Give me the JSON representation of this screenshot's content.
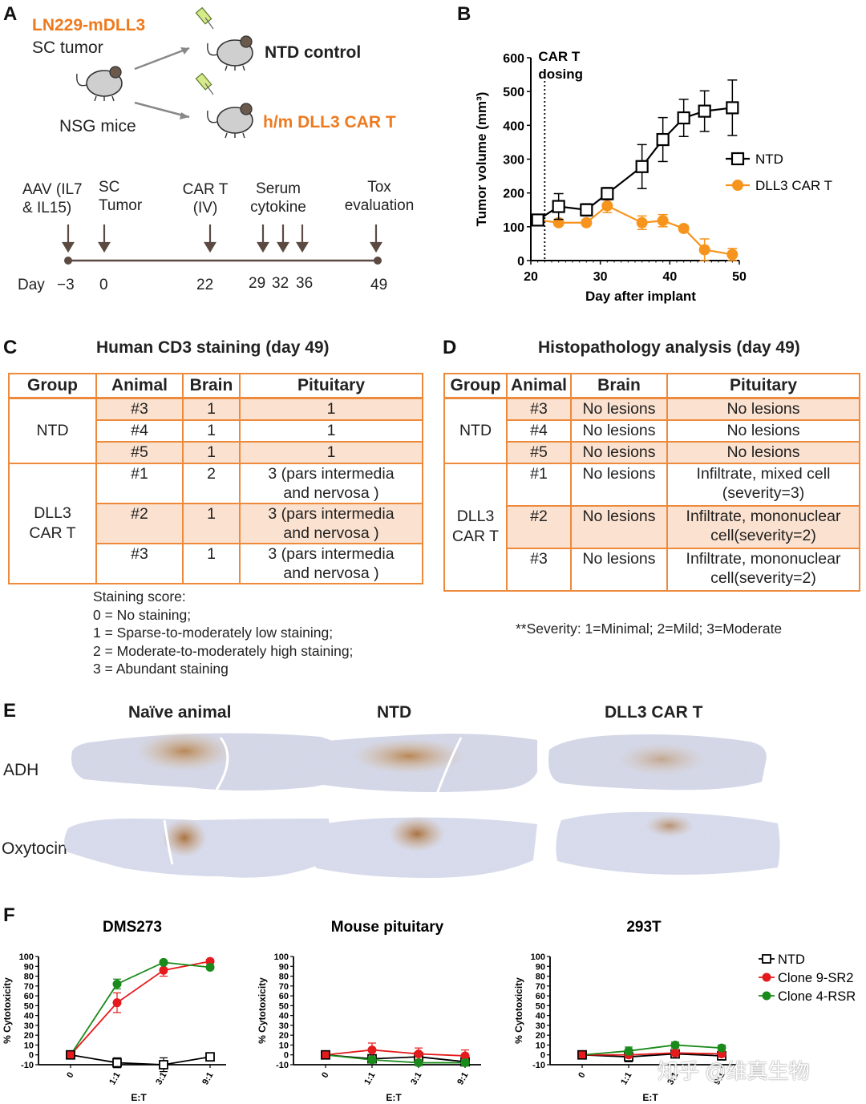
{
  "panelA": {
    "label": "A",
    "tumor_line1": "LN229-mDLL3",
    "tumor_line2": "SC tumor",
    "mice": "NSG mice",
    "group1": "NTD control",
    "group2": "h/m DLL3 CAR T",
    "events": [
      {
        "line1": "AAV (IL7",
        "line2": "& IL15)"
      },
      {
        "line1": "SC",
        "line2": "Tumor"
      },
      {
        "line1": "CAR T",
        "line2": "(IV)"
      },
      {
        "line1": "Serum",
        "line2": "cytokine"
      },
      {
        "line1": "Tox",
        "line2": "evaluation"
      }
    ],
    "day_label": "Day",
    "days": [
      "−3",
      "0",
      "22",
      "29",
      "32",
      "36",
      "49"
    ]
  },
  "panelB": {
    "label": "B",
    "chart_data": {
      "type": "line",
      "xlabel": "Day after implant",
      "ylabel": "Tumor volume (mm³)",
      "xlim": [
        20,
        50
      ],
      "ylim": [
        0,
        600
      ],
      "xticks": [
        "20",
        "30",
        "40",
        "50"
      ],
      "yticks": [
        "0",
        "100",
        "200",
        "300",
        "400",
        "500",
        "600"
      ],
      "annotation_line1": "CAR T",
      "annotation_line2": "dosing",
      "annotation_x": 22,
      "series": [
        {
          "name": "NTD",
          "color": "#000000",
          "marker": "square-open",
          "x": [
            21,
            24,
            28,
            31,
            36,
            39,
            42,
            45,
            49
          ],
          "y": [
            120,
            160,
            150,
            198,
            278,
            358,
            422,
            442,
            452
          ],
          "err": [
            12,
            38,
            18,
            18,
            65,
            65,
            55,
            60,
            82
          ]
        },
        {
          "name": "DLL3 CAR T",
          "color": "#f7941d",
          "marker": "circle-filled",
          "x": [
            21,
            24,
            28,
            31,
            36,
            39,
            42,
            45,
            49
          ],
          "y": [
            120,
            112,
            112,
            162,
            112,
            118,
            95,
            32,
            18
          ],
          "err": [
            12,
            8,
            8,
            20,
            20,
            18,
            8,
            32,
            18
          ]
        }
      ]
    }
  },
  "panelC": {
    "label": "C",
    "title": "Human CD3 staining (day 49)",
    "headers": [
      "Group",
      "Animal",
      "Brain",
      "Pituitary"
    ],
    "groups": [
      {
        "name_line1": "NTD",
        "name_line2": "",
        "rows": [
          {
            "animal": "#3",
            "brain": "1",
            "pit1": "1",
            "pit2": ""
          },
          {
            "animal": "#4",
            "brain": "1",
            "pit1": "1",
            "pit2": ""
          },
          {
            "animal": "#5",
            "brain": "1",
            "pit1": "1",
            "pit2": ""
          }
        ]
      },
      {
        "name_line1": "DLL3",
        "name_line2": "CAR T",
        "rows": [
          {
            "animal": "#1",
            "brain": "2",
            "pit1": "3 (pars intermedia",
            "pit2": "and nervosa )"
          },
          {
            "animal": "#2",
            "brain": "1",
            "pit1": "3 (pars intermedia",
            "pit2": "and nervosa )"
          },
          {
            "animal": "#3",
            "brain": "1",
            "pit1": "3 (pars intermedia",
            "pit2": "and nervosa )"
          }
        ]
      }
    ],
    "legend": [
      "Staining score:",
      "0 = No staining;",
      "1 = Sparse-to-moderately low staining;",
      "2 = Moderate-to-moderately high staining;",
      "3 = Abundant staining"
    ]
  },
  "panelD": {
    "label": "D",
    "title": "Histopathology analysis (day 49)",
    "headers": [
      "Group",
      "Animal",
      "Brain",
      "Pituitary"
    ],
    "groups": [
      {
        "name_line1": "NTD",
        "name_line2": "",
        "rows": [
          {
            "animal": "#3",
            "brain": "No lesions",
            "pit1": "No lesions",
            "pit2": ""
          },
          {
            "animal": "#4",
            "brain": "No lesions",
            "pit1": "No lesions",
            "pit2": ""
          },
          {
            "animal": "#5",
            "brain": "No lesions",
            "pit1": "No lesions",
            "pit2": ""
          }
        ]
      },
      {
        "name_line1": "DLL3",
        "name_line2": "CAR T",
        "rows": [
          {
            "animal": "#1",
            "brain": "No lesions",
            "pit1": "Infiltrate, mixed cell",
            "pit2": "(severity=3)"
          },
          {
            "animal": "#2",
            "brain": "No lesions",
            "pit1": "Infiltrate, mononuclear",
            "pit2": "cell(severity=2)"
          },
          {
            "animal": "#3",
            "brain": "No lesions",
            "pit1": "Infiltrate, mononuclear",
            "pit2": "cell(severity=2)"
          }
        ]
      }
    ],
    "footnote": "**Severity:  1=Minimal; 2=Mild; 3=Moderate"
  },
  "panelE": {
    "label": "E",
    "columns": [
      "Naïve animal",
      "NTD",
      "DLL3 CAR T"
    ],
    "rows": [
      "ADH",
      "Oxytocin"
    ]
  },
  "panelF": {
    "label": "F",
    "xlabel": "E:T",
    "ylabel": "% Cytotoxicity",
    "legend": [
      "NTD",
      "Clone 9-SR2",
      "Clone 4-RSR"
    ],
    "chart_data": [
      {
        "type": "line",
        "title": "DMS273",
        "categories": [
          "0",
          "1:1",
          "3:1",
          "9:1"
        ],
        "ylim": [
          -10,
          100
        ],
        "yticks": [
          "-10",
          "0",
          "10",
          "20",
          "30",
          "40",
          "50",
          "60",
          "70",
          "80",
          "90",
          "100"
        ],
        "series": [
          {
            "name": "NTD",
            "color": "#000000",
            "values": [
              0,
              -8,
              -10,
              -2
            ],
            "err": [
              1,
              5,
              7,
              2
            ]
          },
          {
            "name": "Clone 9-SR2",
            "color": "#e41a1c",
            "values": [
              0,
              53,
              86,
              95
            ],
            "err": [
              1,
              10,
              6,
              2
            ]
          },
          {
            "name": "Clone 4-RSR",
            "color": "#1a8a1a",
            "values": [
              0,
              72,
              94,
              89
            ],
            "err": [
              1,
              5,
              2,
              2
            ]
          }
        ]
      },
      {
        "type": "line",
        "title": "Mouse pituitary",
        "categories": [
          "0",
          "1:1",
          "3:1",
          "9:1"
        ],
        "ylim": [
          -10,
          100
        ],
        "yticks": [
          "-10",
          "0",
          "10",
          "20",
          "30",
          "40",
          "50",
          "60",
          "70",
          "80",
          "90",
          "100"
        ],
        "series": [
          {
            "name": "NTD",
            "color": "#000000",
            "values": [
              0,
              -4,
              -2,
              -7
            ],
            "err": [
              1,
              3,
              4,
              3
            ]
          },
          {
            "name": "Clone 9-SR2",
            "color": "#e41a1c",
            "values": [
              0,
              5,
              1,
              -1
            ],
            "err": [
              1,
              7,
              6,
              6
            ]
          },
          {
            "name": "Clone 4-RSR",
            "color": "#1a8a1a",
            "values": [
              0,
              -5,
              -8,
              -8
            ],
            "err": [
              1,
              3,
              3,
              3
            ]
          }
        ]
      },
      {
        "type": "line",
        "title": "293T",
        "categories": [
          "0",
          "1:1",
          "3:1",
          "9:1"
        ],
        "ylim": [
          -10,
          100
        ],
        "yticks": [
          "-10",
          "0",
          "10",
          "20",
          "30",
          "40",
          "50",
          "60",
          "70",
          "80",
          "90",
          "100"
        ],
        "series": [
          {
            "name": "NTD",
            "color": "#000000",
            "values": [
              0,
              -2,
              1,
              -1
            ],
            "err": [
              1,
              5,
              4,
              3
            ]
          },
          {
            "name": "Clone 9-SR2",
            "color": "#e41a1c",
            "values": [
              0,
              0,
              2,
              1
            ],
            "err": [
              1,
              3,
              3,
              3
            ]
          },
          {
            "name": "Clone 4-RSR",
            "color": "#1a8a1a",
            "values": [
              0,
              4,
              10,
              7
            ],
            "err": [
              1,
              4,
              3,
              3
            ]
          }
        ]
      }
    ]
  },
  "watermark": "知乎 @维真生物"
}
